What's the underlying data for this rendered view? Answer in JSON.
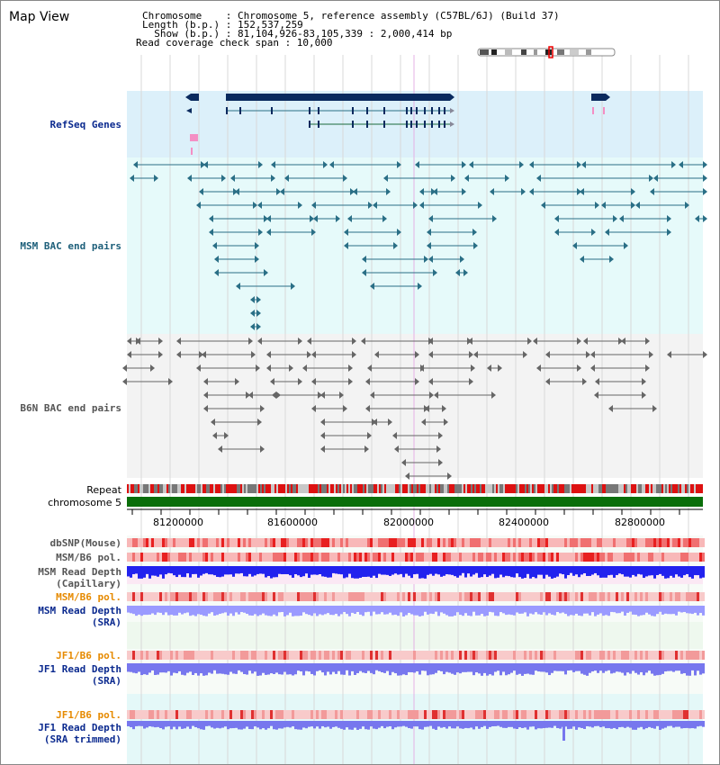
{
  "title": "Map View",
  "info": {
    "chromosome": "Chromosome    : Chromosome 5, reference assembly (C57BL/6J) (Build 37)",
    "length": "Length (b.p.) : 152,537,259",
    "show": "  Show (b.p.) : 81,104,926-83,105,339 : 2,000,414 bp",
    "coverage": "Read coverage check span : 10,000"
  },
  "tracks": {
    "refseq": "RefSeq Genes",
    "msm_bac": "MSM BAC end pairs",
    "b6n_bac": "B6N BAC end pairs",
    "repeat": "Repeat",
    "chromosome": "chromosome 5",
    "dbsnp": "dbSNP(Mouse)",
    "msm_b6_pol": "MSM/B6 pol.",
    "msm_depth_cap_1": "MSM Read Depth",
    "msm_depth_cap_2": "(Capillary)",
    "msm_b6_pol_sra": "MSM/B6 pol.",
    "msm_depth_sra_1": "MSM Read Depth",
    "msm_depth_sra_2": "(SRA)",
    "jf1_b6_pol": "JF1/B6 pol.",
    "jf1_depth_1": "JF1 Read Depth",
    "jf1_depth_2": "(SRA)",
    "jf1_b6_pol_t": "JF1/B6 pol.",
    "jf1_depth_t_1": "JF1 Read Depth",
    "jf1_depth_t_2": "(SRA trimmed)"
  },
  "axis": {
    "ticks": [
      "81200000",
      "81600000",
      "82000000",
      "82400000",
      "82800000"
    ]
  },
  "colors": {
    "refseq_bg": "#dcf0fa",
    "bac_bg": "#e6fafa",
    "navy": "#0a2a5e",
    "teal": "#2a6f86",
    "chrom": "#0a6e0a",
    "repeat_red": "#dd1111",
    "depth_blue": "#2222ee",
    "depth_light": "#7777ee",
    "pol_red": "#f08080"
  }
}
